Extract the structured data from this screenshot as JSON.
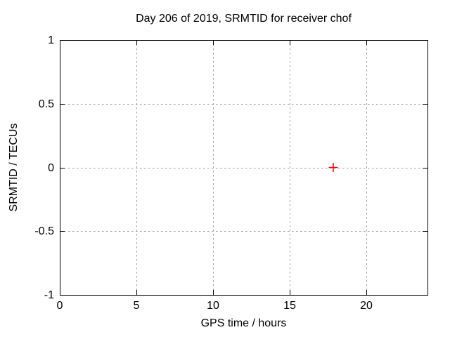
{
  "window": {
    "background": "#ffffff"
  },
  "chart_data": {
    "type": "scatter",
    "title": "Day 206 of 2019, SRMTID for receiver chof",
    "xlabel": "GPS time / hours",
    "ylabel": "SRMTID / TECUs",
    "xlim": [
      0,
      24
    ],
    "ylim": [
      -1,
      1
    ],
    "xticks": [
      0,
      5,
      10,
      15,
      20
    ],
    "xtick_labels": [
      "0",
      "5",
      "10",
      "15",
      "20"
    ],
    "yticks": [
      -1,
      -0.5,
      0,
      0.5,
      1
    ],
    "ytick_labels": [
      "-1",
      "-0.5",
      "0",
      "0.5",
      "1"
    ],
    "grid": true,
    "grid_style": "dotted",
    "legend": "none",
    "series": [
      {
        "name": "SRMTID",
        "marker": "plus",
        "color": "#ff0000",
        "points": [
          {
            "x": 17.85,
            "y": 0.0
          }
        ]
      }
    ],
    "colors": {
      "border": "#000000",
      "grid": "#9e9e9e",
      "text": "#000000",
      "point": "#ff0000"
    }
  }
}
